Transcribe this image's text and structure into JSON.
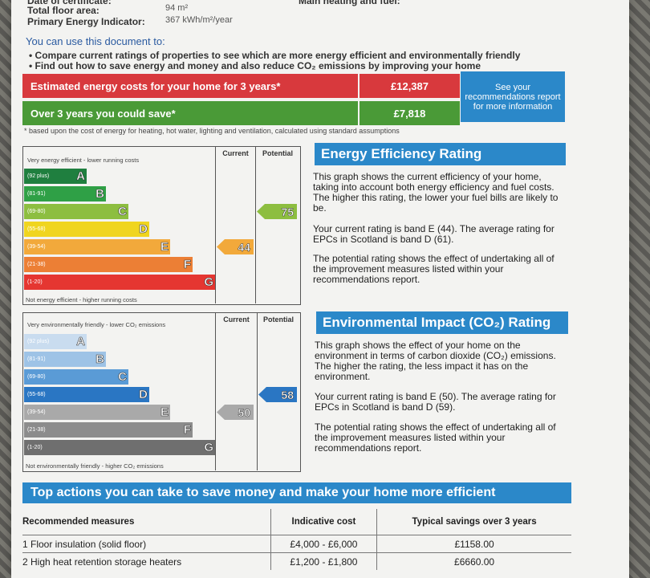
{
  "header": {
    "cut_left": "Date of certificate:",
    "total_floor_area_label": "Total floor area:",
    "total_floor_area_value": "94 m²",
    "pei_label": "Primary Energy Indicator:",
    "pei_value": "367 kWh/m²/year",
    "cut_right": "Main heating and fuel:"
  },
  "intro": {
    "title": "You can use this document to:",
    "bullet1": "Compare current ratings of properties to see which are more energy efficient and environmentally friendly",
    "bullet2": "Find out how to save energy and money and also reduce CO₂ emissions by improving your home"
  },
  "costs": {
    "row1_label": "Estimated energy costs for your home for 3 years*",
    "row1_value": "£12,387",
    "row2_label": "Over 3 years you could save*",
    "row2_value": "£7,818",
    "see_box": "See your recommendations report for more information",
    "footnote": "* based upon the cost of energy for heating, hot water, lighting and ventilation, calculated using standard assumptions",
    "colors": {
      "row1": "#d8393d",
      "row2": "#4a9a37",
      "box": "#2b88c9"
    }
  },
  "ee_graph": {
    "top_label": "Very energy efficient - lower running costs",
    "bottom_label": "Not energy efficient - higher running costs",
    "col_current": "Current",
    "col_potential": "Potential",
    "bands": [
      {
        "letter": "A",
        "range": "(92 plus)",
        "color": "#1f7f3f"
      },
      {
        "letter": "B",
        "range": "(81-91)",
        "color": "#2fa046"
      },
      {
        "letter": "C",
        "range": "(69-80)",
        "color": "#8dbe40"
      },
      {
        "letter": "D",
        "range": "(55-68)",
        "color": "#f0d51f"
      },
      {
        "letter": "E",
        "range": "(39-54)",
        "color": "#f2a93b"
      },
      {
        "letter": "F",
        "range": "(21-38)",
        "color": "#ec7f35"
      },
      {
        "letter": "G",
        "range": "(1-20)",
        "color": "#e53631"
      }
    ],
    "current": 44,
    "potential": 75,
    "current_color": "#f2a93b",
    "potential_color": "#8dbe40"
  },
  "ee_text": {
    "title": "Energy Efficiency Rating",
    "p1": "This graph shows the current efficiency of your home, taking into account both energy efficiency and fuel costs. The higher this rating, the lower your fuel bills are likely to be.",
    "p2": "Your current rating is band E (44). The average rating for EPCs in Scotland is band D (61).",
    "p3": "The potential rating shows the effect of undertaking all of the improvement measures listed within your recommendations report."
  },
  "ei_graph": {
    "top_label": "Very environmentally friendly - lower CO₂ emissions",
    "bottom_label": "Not environmentally friendly - higher CO₂ emissions",
    "col_current": "Current",
    "col_potential": "Potential",
    "bands": [
      {
        "letter": "A",
        "range": "(92 plus)",
        "color": "#c9dcef"
      },
      {
        "letter": "B",
        "range": "(81-91)",
        "color": "#9ec3e6"
      },
      {
        "letter": "C",
        "range": "(69-80)",
        "color": "#5a9bd6"
      },
      {
        "letter": "D",
        "range": "(55-68)",
        "color": "#2a76c3"
      },
      {
        "letter": "E",
        "range": "(39-54)",
        "color": "#a9a9a9"
      },
      {
        "letter": "F",
        "range": "(21-38)",
        "color": "#8c8c8c"
      },
      {
        "letter": "G",
        "range": "(1-20)",
        "color": "#6f6f6f"
      }
    ],
    "current": 50,
    "potential": 58,
    "current_color": "#a9a9a9",
    "potential_color": "#2a76c3"
  },
  "ei_text": {
    "title": "Environmental Impact (CO₂) Rating",
    "p1": "This graph shows the effect of your home on the environment in terms of carbon dioxide (CO₂) emissions. The higher the rating, the less impact it has on the environment.",
    "p2": "Your current rating is band E (50). The average rating for EPCs in Scotland is band D (59).",
    "p3": "The potential rating shows the effect of undertaking all of the improvement measures listed within your recommendations report."
  },
  "actions": {
    "title": "Top actions you can take to save money and make your home more efficient",
    "headers": [
      "Recommended measures",
      "Indicative cost",
      "Typical savings over 3 years"
    ],
    "rows": [
      [
        "1 Floor insulation (solid floor)",
        "£4,000 - £6,000",
        "£1158.00"
      ],
      [
        "2 High heat retention storage heaters",
        "£1,200 - £1,800",
        "£6660.00"
      ]
    ]
  }
}
